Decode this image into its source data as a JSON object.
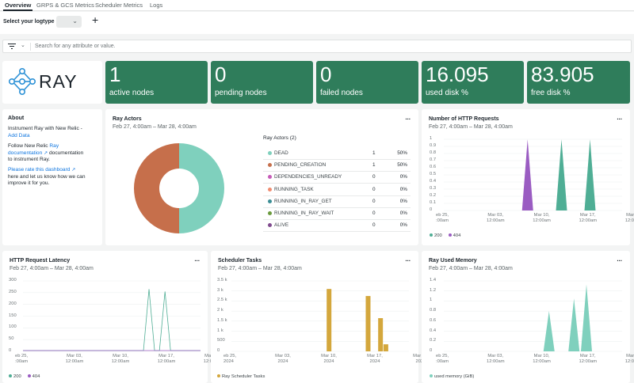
{
  "tabs": [
    "Overview",
    "GRPS & GCS Metrics",
    "Scheduler Metrics",
    "Logs"
  ],
  "toolbar": {
    "logtype_label": "Select your logtype",
    "add_label": "+"
  },
  "filter": {
    "placeholder": "Search for any attribute or value."
  },
  "logo": {
    "text": "RAY"
  },
  "stats": [
    {
      "value": "1",
      "label": "active nodes"
    },
    {
      "value": "0",
      "label": "pending nodes"
    },
    {
      "value": "0",
      "label": "failed nodes"
    },
    {
      "value": "16.095",
      "label": "used disk %"
    },
    {
      "value": "83.905",
      "label": "free disk %"
    }
  ],
  "about": {
    "title": "About",
    "line1": "Instrument Ray with New Relic -",
    "add_data": "Add Data",
    "follow_prefix": "Follow New Relic",
    "ray_link": "Ray",
    "documentation": "documentation",
    "follow_suffix": "documentation",
    "to_instrument": "to instrument Ray.",
    "rate_link": "Please rate this dashboard",
    "rate_rest1": "here and let us know how we can",
    "rate_rest2": "improve it for you."
  },
  "colors": {
    "stat_bg": "#2f7d5b",
    "teal": "#4fae95",
    "orange": "#c66f4b",
    "purple": "#9a5cc2",
    "gold": "#d4a73c",
    "link": "#0c74df"
  },
  "panels": {
    "ray_actors": {
      "title": "Ray Actors",
      "subtitle": "Feb 27, 4:00am – Mar 28, 4:00am",
      "menu": "..."
    },
    "http_requests": {
      "title": "Number of HTTP Requests",
      "subtitle": "Feb 27, 4:00am – Mar 28, 4:00am",
      "menu": "..."
    },
    "http_latency": {
      "title": "HTTP Request Latency",
      "subtitle": "Feb 27, 4:00am – Mar 28, 4:00am",
      "menu": "..."
    },
    "scheduler_tasks": {
      "title": "Scheduler Tasks",
      "subtitle": "Feb 27, 4:00am – Mar 28, 4:00am",
      "menu": "..."
    },
    "ray_memory": {
      "title": "Ray Used Memory",
      "subtitle": "Feb 27, 4:00am – Mar 28, 4:00am",
      "menu": "..."
    }
  },
  "chart_data": [
    {
      "type": "pie",
      "title": "Ray Actors",
      "legend_title": "Ray Actors (2)",
      "slices": [
        {
          "name": "DEAD",
          "value": 1,
          "pct": "50%",
          "color": "#7fd0bd"
        },
        {
          "name": "PENDING_CREATION",
          "value": 1,
          "pct": "50%",
          "color": "#c66f4b"
        },
        {
          "name": "DEPENDENCIES_UNREADY",
          "value": 0,
          "pct": "0%",
          "color": "#c65bb8"
        },
        {
          "name": "RUNNING_TASK",
          "value": 0,
          "pct": "0%",
          "color": "#f08c70"
        },
        {
          "name": "RUNNING_IN_RAY_GET",
          "value": 0,
          "pct": "0%",
          "color": "#3b8e95"
        },
        {
          "name": "RUNNING_IN_RAY_WAIT",
          "value": 0,
          "pct": "0%",
          "color": "#6a9a3c"
        },
        {
          "name": "ALIVE",
          "value": 0,
          "pct": "0%",
          "color": "#7f4a8e"
        }
      ]
    },
    {
      "type": "area",
      "title": "Number of HTTP Requests",
      "yticks": [
        "1",
        "0.9",
        "0.8",
        "0.7",
        "0.6",
        "0.5",
        "0.4",
        "0.3",
        "0.2",
        "0.1",
        "0"
      ],
      "ylim": [
        0,
        1
      ],
      "xticks": [
        "eb 25,\n:00am",
        "Mar 03,\n12:00am",
        "Mar 10,\n12:00am",
        "Mar 17,\n12:00am",
        "Mar 24,\n12:00am"
      ],
      "series": [
        {
          "name": "200",
          "color": "#4fae95",
          "peaks": [
            {
              "x": 0.66,
              "y": 1
            },
            {
              "x": 0.82,
              "y": 1
            }
          ]
        },
        {
          "name": "404",
          "color": "#9a5cc2",
          "peaks": [
            {
              "x": 0.47,
              "y": 1
            }
          ]
        }
      ]
    },
    {
      "type": "line",
      "title": "HTTP Request Latency",
      "yticks": [
        "300",
        "250",
        "200",
        "150",
        "100",
        "50",
        "0"
      ],
      "ylim": [
        0,
        300
      ],
      "xticks": [
        "eb 25,\n:00am",
        "Mar 03,\n12:00am",
        "Mar 10,\n12:00am",
        "Mar 17,\n12:00am",
        "Mar 24,\n12:00am"
      ],
      "series": [
        {
          "name": "200",
          "color": "#4fae95",
          "peaks": [
            {
              "x": 0.71,
              "y": 265
            },
            {
              "x": 0.8,
              "y": 255
            }
          ]
        },
        {
          "name": "404",
          "color": "#9a5cc2",
          "peaks": []
        }
      ]
    },
    {
      "type": "bar",
      "title": "Scheduler Tasks",
      "yticks": [
        "3.5 k",
        "3 k",
        "2.5 k",
        "2 k",
        "1.5 k",
        "1 k",
        "500",
        "0"
      ],
      "ylim": [
        0,
        3500
      ],
      "xticks": [
        "eb 25,\n2024",
        "Mar 03,\n2024",
        "Mar 10,\n2024",
        "Mar 17,\n2024",
        "Mar 24,\n2024"
      ],
      "series": [
        {
          "name": "Ray Scheduler Tasks",
          "color": "#d4a73c",
          "bars": [
            {
              "x": 0.55,
              "y": 3100
            },
            {
              "x": 0.77,
              "y": 2750
            },
            {
              "x": 0.84,
              "y": 1650
            },
            {
              "x": 0.87,
              "y": 350
            }
          ]
        }
      ]
    },
    {
      "type": "area",
      "title": "Ray Used Memory",
      "yticks": [
        "1.4",
        "1.2",
        "1",
        "0.8",
        "0.6",
        "0.4",
        "0.2",
        "0"
      ],
      "ylim": [
        0,
        1.4
      ],
      "xticks": [
        "eb 25,\n:00am",
        "Mar 03,\n12:00am",
        "Mar 10,\n12:00am",
        "Mar 17,\n12:00am",
        "Mar 24,\n12:00am"
      ],
      "series": [
        {
          "name": "used memory (GiB)",
          "color": "#7fd0bd",
          "peaks": [
            {
              "x": 0.59,
              "y": 0.8
            },
            {
              "x": 0.73,
              "y": 1.05
            },
            {
              "x": 0.8,
              "y": 1.33
            }
          ]
        }
      ]
    }
  ]
}
